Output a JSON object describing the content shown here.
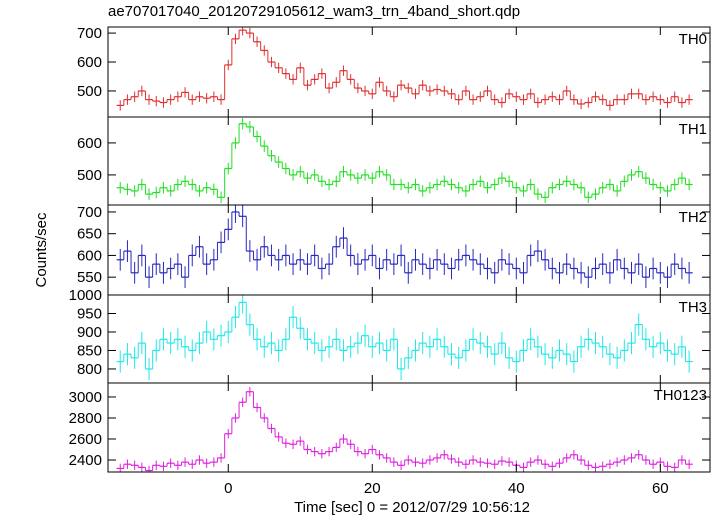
{
  "title": "ae707017040_20120729105612_wam3_trn_4band_short.qdp",
  "xlabel": "Time [sec] 0 = 2012/07/29 10:56:12",
  "ylabel": "Counts/sec",
  "chart_data": [
    {
      "type": "step",
      "label": "TH0",
      "color": "#e03030",
      "yerr": 18,
      "x": [
        -15,
        -14,
        -13,
        -12,
        -11,
        -10,
        -9,
        -8,
        -7,
        -6,
        -5,
        -4,
        -3,
        -2,
        -1,
        0,
        1,
        2,
        3,
        4,
        5,
        6,
        7,
        8,
        9,
        10,
        11,
        12,
        13,
        14,
        15,
        16,
        17,
        18,
        19,
        20,
        21,
        22,
        23,
        24,
        25,
        26,
        27,
        28,
        29,
        30,
        31,
        32,
        33,
        34,
        35,
        36,
        37,
        38,
        39,
        40,
        41,
        42,
        43,
        44,
        45,
        46,
        47,
        48,
        49,
        50,
        51,
        52,
        53,
        54,
        55,
        56,
        57,
        58,
        59,
        60,
        61,
        62,
        63,
        64
      ],
      "values": [
        450,
        470,
        480,
        500,
        470,
        465,
        460,
        470,
        480,
        495,
        470,
        480,
        475,
        480,
        470,
        590,
        680,
        710,
        700,
        670,
        640,
        600,
        580,
        560,
        540,
        580,
        520,
        540,
        560,
        510,
        530,
        570,
        540,
        510,
        500,
        490,
        530,
        500,
        480,
        520,
        510,
        490,
        520,
        500,
        505,
        500,
        490,
        470,
        500,
        470,
        480,
        500,
        470,
        460,
        490,
        480,
        470,
        490,
        460,
        470,
        480,
        470,
        500,
        470,
        455,
        460,
        480,
        470,
        450,
        470,
        470,
        490,
        490,
        470,
        480,
        470,
        460,
        480,
        460,
        470
      ],
      "xlim": [
        -16.7,
        66.9
      ],
      "xticks": [
        0,
        20,
        40,
        60
      ],
      "ylim": [
        410,
        721
      ],
      "yticks": [
        500,
        600,
        700
      ]
    },
    {
      "type": "step",
      "label": "TH1",
      "color": "#20e020",
      "yerr": 18,
      "x": [
        -15,
        -14,
        -13,
        -12,
        -11,
        -10,
        -9,
        -8,
        -7,
        -6,
        -5,
        -4,
        -3,
        -2,
        -1,
        0,
        1,
        2,
        3,
        4,
        5,
        6,
        7,
        8,
        9,
        10,
        11,
        12,
        13,
        14,
        15,
        16,
        17,
        18,
        19,
        20,
        21,
        22,
        23,
        24,
        25,
        26,
        27,
        28,
        29,
        30,
        31,
        32,
        33,
        34,
        35,
        36,
        37,
        38,
        39,
        40,
        41,
        42,
        43,
        44,
        45,
        46,
        47,
        48,
        49,
        50,
        51,
        52,
        53,
        54,
        55,
        56,
        57,
        58,
        59,
        60,
        61,
        62,
        63,
        64
      ],
      "values": [
        460,
        455,
        450,
        470,
        440,
        445,
        460,
        450,
        470,
        480,
        470,
        450,
        460,
        455,
        430,
        520,
        600,
        660,
        650,
        620,
        590,
        560,
        540,
        520,
        500,
        510,
        490,
        500,
        480,
        470,
        480,
        510,
        500,
        490,
        500,
        490,
        510,
        500,
        470,
        470,
        460,
        470,
        450,
        460,
        470,
        480,
        470,
        460,
        450,
        470,
        480,
        460,
        470,
        490,
        480,
        460,
        450,
        470,
        440,
        430,
        460,
        470,
        480,
        470,
        460,
        430,
        440,
        460,
        470,
        450,
        480,
        500,
        510,
        490,
        470,
        460,
        450,
        470,
        490,
        470
      ],
      "xlim": [
        -16.7,
        66.9
      ],
      "xticks": [
        0,
        20,
        40,
        60
      ],
      "ylim": [
        406,
        681
      ],
      "yticks": [
        500,
        600
      ]
    },
    {
      "type": "step",
      "label": "TH2",
      "color": "#2828c0",
      "yerr": 25,
      "x": [
        -15,
        -14,
        -13,
        -12,
        -11,
        -10,
        -9,
        -8,
        -7,
        -6,
        -5,
        -4,
        -3,
        -2,
        -1,
        0,
        1,
        2,
        3,
        4,
        5,
        6,
        7,
        8,
        9,
        10,
        11,
        12,
        13,
        14,
        15,
        16,
        17,
        18,
        19,
        20,
        21,
        22,
        23,
        24,
        25,
        26,
        27,
        28,
        29,
        30,
        31,
        32,
        33,
        34,
        35,
        36,
        37,
        38,
        39,
        40,
        41,
        42,
        43,
        44,
        45,
        46,
        47,
        48,
        49,
        50,
        51,
        52,
        53,
        54,
        55,
        56,
        57,
        58,
        59,
        60,
        61,
        62,
        63,
        64
      ],
      "values": [
        590,
        610,
        560,
        600,
        550,
        580,
        560,
        570,
        580,
        550,
        600,
        620,
        580,
        590,
        630,
        660,
        700,
        690,
        610,
        590,
        620,
        600,
        590,
        600,
        580,
        590,
        580,
        600,
        570,
        580,
        620,
        640,
        600,
        580,
        590,
        600,
        570,
        590,
        580,
        600,
        560,
        590,
        580,
        570,
        590,
        580,
        570,
        590,
        600,
        590,
        580,
        570,
        560,
        590,
        580,
        570,
        560,
        600,
        610,
        590,
        570,
        560,
        580,
        570,
        560,
        550,
        570,
        580,
        560,
        590,
        570,
        560,
        580,
        550,
        570,
        560,
        550,
        580,
        570,
        560
      ],
      "xlim": [
        -16.7,
        66.9
      ],
      "xticks": [
        0,
        20,
        40,
        60
      ],
      "ylim": [
        509,
        716
      ],
      "yticks": [
        550,
        600,
        650,
        700
      ]
    },
    {
      "type": "step",
      "label": "TH3",
      "color": "#20e8e8",
      "yerr": 30,
      "x": [
        -15,
        -14,
        -13,
        -12,
        -11,
        -10,
        -9,
        -8,
        -7,
        -6,
        -5,
        -4,
        -3,
        -2,
        -1,
        0,
        1,
        2,
        3,
        4,
        5,
        6,
        7,
        8,
        9,
        10,
        11,
        12,
        13,
        14,
        15,
        16,
        17,
        18,
        19,
        20,
        21,
        22,
        23,
        24,
        25,
        26,
        27,
        28,
        29,
        30,
        31,
        32,
        33,
        34,
        35,
        36,
        37,
        38,
        39,
        40,
        41,
        42,
        43,
        44,
        45,
        46,
        47,
        48,
        49,
        50,
        51,
        52,
        53,
        54,
        55,
        56,
        57,
        58,
        59,
        60,
        61,
        62,
        63,
        64
      ],
      "values": [
        820,
        840,
        830,
        870,
        800,
        850,
        880,
        870,
        880,
        860,
        850,
        870,
        900,
        880,
        890,
        900,
        940,
        980,
        920,
        880,
        860,
        870,
        850,
        880,
        940,
        910,
        880,
        870,
        850,
        860,
        880,
        850,
        860,
        870,
        890,
        860,
        870,
        850,
        880,
        800,
        830,
        850,
        870,
        860,
        880,
        860,
        840,
        830,
        850,
        880,
        870,
        860,
        840,
        870,
        830,
        820,
        850,
        880,
        860,
        840,
        830,
        850,
        840,
        820,
        860,
        880,
        870,
        860,
        840,
        830,
        850,
        870,
        920,
        880,
        860,
        870,
        850,
        840,
        860,
        820
      ],
      "xlim": [
        -16.7,
        66.9
      ],
      "xticks": [
        0,
        20,
        40,
        60
      ],
      "ylim": [
        762,
        1000
      ],
      "yticks": [
        800,
        850,
        900,
        950,
        1000
      ]
    },
    {
      "type": "step",
      "label": "TH0123",
      "color": "#e020e0",
      "yerr": 45,
      "x": [
        -15,
        -14,
        -13,
        -12,
        -11,
        -10,
        -9,
        -8,
        -7,
        -6,
        -5,
        -4,
        -3,
        -2,
        -1,
        0,
        1,
        2,
        3,
        4,
        5,
        6,
        7,
        8,
        9,
        10,
        11,
        12,
        13,
        14,
        15,
        16,
        17,
        18,
        19,
        20,
        21,
        22,
        23,
        24,
        25,
        26,
        27,
        28,
        29,
        30,
        31,
        32,
        33,
        34,
        35,
        36,
        37,
        38,
        39,
        40,
        41,
        42,
        43,
        44,
        45,
        46,
        47,
        48,
        49,
        50,
        51,
        52,
        53,
        54,
        55,
        56,
        57,
        58,
        59,
        60,
        61,
        62,
        63,
        64
      ],
      "values": [
        2320,
        2360,
        2350,
        2330,
        2300,
        2350,
        2340,
        2370,
        2350,
        2380,
        2360,
        2400,
        2370,
        2380,
        2420,
        2650,
        2800,
        2950,
        3050,
        2900,
        2800,
        2700,
        2620,
        2560,
        2550,
        2580,
        2500,
        2480,
        2460,
        2480,
        2520,
        2600,
        2550,
        2480,
        2460,
        2500,
        2450,
        2420,
        2380,
        2350,
        2400,
        2380,
        2370,
        2400,
        2420,
        2450,
        2410,
        2380,
        2360,
        2400,
        2380,
        2370,
        2360,
        2390,
        2380,
        2350,
        2330,
        2380,
        2400,
        2360,
        2340,
        2370,
        2420,
        2450,
        2400,
        2350,
        2330,
        2340,
        2360,
        2380,
        2400,
        2420,
        2450,
        2400,
        2360,
        2380,
        2340,
        2330,
        2400,
        2360
      ],
      "xlim": [
        -16.7,
        66.9
      ],
      "xticks": [
        0,
        20,
        40,
        60
      ],
      "ylim": [
        2286,
        3133
      ],
      "yticks": [
        2400,
        2600,
        2800,
        3000
      ]
    }
  ]
}
